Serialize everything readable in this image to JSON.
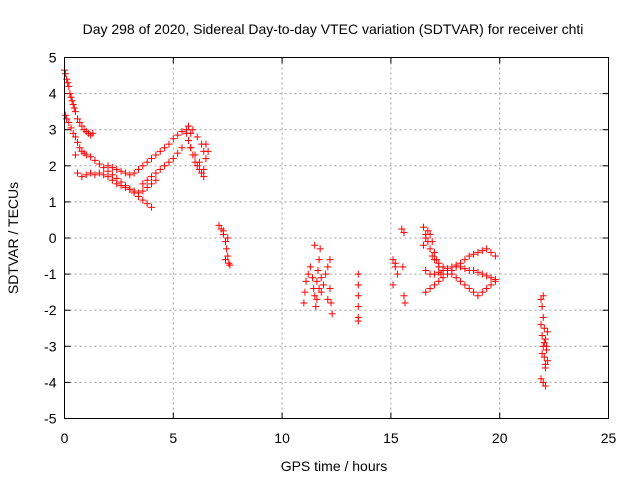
{
  "chart_data": {
    "type": "scatter",
    "title": "Day 298 of 2020, Sidereal Day-to-day VTEC variation (SDTVAR) for receiver chti",
    "xlabel": "GPS time / hours",
    "ylabel": "SDTVAR / TECUs",
    "xlim": [
      0,
      25
    ],
    "ylim": [
      -5,
      5
    ],
    "xticks": [
      "0",
      "5",
      "10",
      "15",
      "20",
      "25"
    ],
    "yticks": [
      "-5",
      "-4",
      "-3",
      "-2",
      "-1",
      "0",
      "1",
      "2",
      "3",
      "4",
      "5"
    ],
    "grid": true,
    "marker": "plus",
    "color": "#ff0000",
    "series": [
      {
        "name": "SDTVAR",
        "x": [
          0.0,
          0.05,
          0.1,
          0.15,
          0.2,
          0.25,
          0.3,
          0.35,
          0.4,
          0.45,
          0.5,
          0.6,
          0.7,
          0.8,
          0.9,
          1.0,
          1.1,
          1.2,
          1.3,
          0.05,
          0.1,
          0.2,
          0.3,
          0.4,
          0.5,
          0.6,
          0.7,
          0.8,
          0.9,
          1.0,
          1.2,
          1.4,
          1.6,
          1.8,
          2.0,
          2.2,
          2.4,
          2.6,
          2.8,
          3.0,
          3.2,
          3.4,
          3.6,
          3.8,
          4.0,
          0.5,
          0.6,
          0.8,
          1.0,
          1.2,
          1.4,
          1.6,
          1.8,
          2.0,
          2.2,
          2.4,
          2.6,
          2.8,
          3.0,
          3.2,
          3.4,
          3.6,
          3.8,
          4.0,
          4.2,
          2.0,
          2.2,
          2.4,
          2.6,
          2.8,
          3.0,
          3.2,
          3.4,
          3.6,
          3.8,
          4.0,
          4.2,
          4.4,
          4.6,
          4.8,
          5.0,
          5.2,
          5.4,
          5.6,
          5.8,
          3.6,
          3.8,
          4.0,
          4.2,
          4.4,
          4.6,
          4.8,
          5.0,
          5.2,
          5.4,
          5.6,
          5.7,
          5.8,
          5.9,
          6.0,
          6.1,
          6.2,
          6.3,
          6.4,
          5.7,
          5.9,
          6.1,
          6.3,
          6.4,
          6.5,
          5.8,
          6.0,
          6.2,
          6.4,
          6.5,
          6.6,
          7.1,
          7.2,
          7.3,
          7.4,
          7.45,
          7.5,
          7.55,
          7.6,
          7.3,
          7.4,
          7.5,
          11.0,
          11.05,
          11.1,
          11.2,
          11.3,
          11.4,
          11.45,
          11.5,
          11.55,
          11.6,
          11.65,
          11.7,
          11.75,
          11.8,
          11.9,
          12.0,
          12.1,
          12.2,
          12.25,
          12.3,
          11.5,
          11.6,
          11.7,
          11.8,
          12.1,
          12.2,
          13.5,
          13.5,
          13.5,
          13.5,
          13.5,
          13.5,
          15.1,
          15.2,
          15.3,
          15.1,
          15.2,
          15.5,
          15.6,
          15.6,
          15.55,
          15.65,
          16.5,
          16.6,
          16.7,
          16.8,
          16.9,
          17.0,
          17.2,
          17.4,
          17.6,
          17.8,
          18.0,
          18.2,
          18.4,
          18.6,
          18.8,
          19.0,
          19.2,
          19.4,
          19.6,
          19.8,
          16.6,
          16.8,
          17.0,
          17.2,
          17.4,
          17.6,
          17.8,
          18.0,
          18.2,
          18.4,
          18.6,
          18.8,
          19.0,
          19.2,
          19.4,
          19.6,
          19.8,
          16.6,
          16.8,
          17.0,
          17.2,
          17.4,
          17.6,
          17.8,
          18.0,
          18.2,
          18.4,
          18.6,
          18.8,
          19.0,
          19.2,
          19.4,
          19.6,
          19.8,
          16.5,
          16.6,
          16.7,
          16.8,
          16.9,
          17.0,
          17.1,
          17.2,
          17.3,
          21.9,
          21.95,
          22.0,
          22.05,
          22.1,
          22.15,
          22.2,
          21.9,
          21.95,
          22.0,
          22.05,
          22.1,
          22.15,
          22.2,
          22.0,
          22.1,
          21.95,
          22.05,
          22.1,
          21.9,
          22.0
        ],
        "y": [
          4.65,
          4.55,
          4.4,
          4.3,
          4.2,
          4.0,
          3.9,
          3.8,
          3.7,
          3.6,
          3.5,
          3.3,
          3.2,
          3.1,
          3.0,
          2.95,
          2.9,
          2.85,
          2.9,
          3.4,
          3.3,
          3.2,
          3.05,
          2.9,
          2.8,
          2.65,
          2.5,
          2.4,
          2.35,
          2.3,
          2.25,
          2.15,
          2.05,
          1.95,
          1.85,
          1.75,
          1.65,
          1.55,
          1.45,
          1.35,
          1.25,
          1.15,
          1.05,
          0.95,
          0.85,
          2.3,
          1.8,
          1.7,
          1.75,
          1.8,
          1.75,
          1.8,
          1.75,
          1.7,
          1.6,
          1.5,
          1.45,
          1.4,
          1.35,
          1.3,
          1.25,
          1.3,
          1.4,
          1.5,
          1.6,
          2.0,
          1.95,
          1.9,
          1.85,
          1.8,
          1.75,
          1.8,
          1.9,
          2.0,
          2.1,
          2.2,
          2.3,
          2.4,
          2.5,
          2.6,
          2.75,
          2.85,
          2.95,
          3.0,
          2.9,
          1.5,
          1.6,
          1.7,
          1.8,
          1.9,
          2.0,
          2.1,
          2.2,
          2.35,
          2.5,
          2.9,
          2.7,
          2.5,
          2.3,
          2.1,
          2.0,
          1.9,
          1.8,
          1.7,
          3.1,
          3.0,
          2.8,
          2.6,
          2.4,
          2.2,
          2.5,
          2.3,
          2.1,
          1.9,
          2.6,
          2.4,
          0.35,
          0.25,
          0.1,
          -0.1,
          -0.3,
          -0.5,
          -0.7,
          -0.75,
          0.2,
          -0.6,
          0.0,
          -1.8,
          -1.5,
          -1.2,
          -1.0,
          -0.8,
          -1.1,
          -1.4,
          -1.6,
          -1.9,
          -1.2,
          -0.9,
          -0.6,
          -0.3,
          -1.5,
          -1.3,
          -1.0,
          -0.8,
          -0.6,
          -1.8,
          -2.1,
          -0.2,
          -1.7,
          -1.4,
          -1.1,
          -1.7,
          -1.4,
          -1.0,
          -1.3,
          -1.6,
          -1.9,
          -2.2,
          -2.3,
          -0.6,
          -0.8,
          -1.0,
          -1.3,
          -0.7,
          0.25,
          0.15,
          -1.6,
          -0.8,
          -1.8,
          0.3,
          0.1,
          -0.1,
          -0.3,
          -0.5,
          -0.6,
          -0.7,
          -0.8,
          -0.9,
          -1.0,
          -1.1,
          -1.2,
          -1.3,
          -1.4,
          -1.5,
          -1.6,
          -1.5,
          -1.4,
          -1.3,
          -1.2,
          -0.9,
          -1.0,
          -1.0,
          -0.95,
          -0.9,
          -0.85,
          -0.8,
          -0.75,
          -0.8,
          -0.85,
          -0.9,
          -0.9,
          -0.95,
          -1.0,
          -1.05,
          -1.1,
          -1.15,
          -1.5,
          -1.4,
          -1.3,
          -1.2,
          -1.1,
          -1.0,
          -0.9,
          -0.8,
          -0.7,
          -0.6,
          -0.5,
          -0.45,
          -0.4,
          -0.35,
          -0.3,
          -0.4,
          -0.5,
          -0.2,
          0.0,
          0.2,
          0.1,
          -0.1,
          -0.4,
          -0.6,
          -0.8,
          -1.0,
          -1.7,
          -1.9,
          -2.2,
          -2.5,
          -2.8,
          -3.1,
          -3.4,
          -2.4,
          -2.7,
          -3.0,
          -3.3,
          -3.6,
          -3.0,
          -2.6,
          -4.0,
          -4.1,
          -3.2,
          -2.9,
          -3.5,
          -3.9,
          -1.6
        ]
      }
    ]
  }
}
